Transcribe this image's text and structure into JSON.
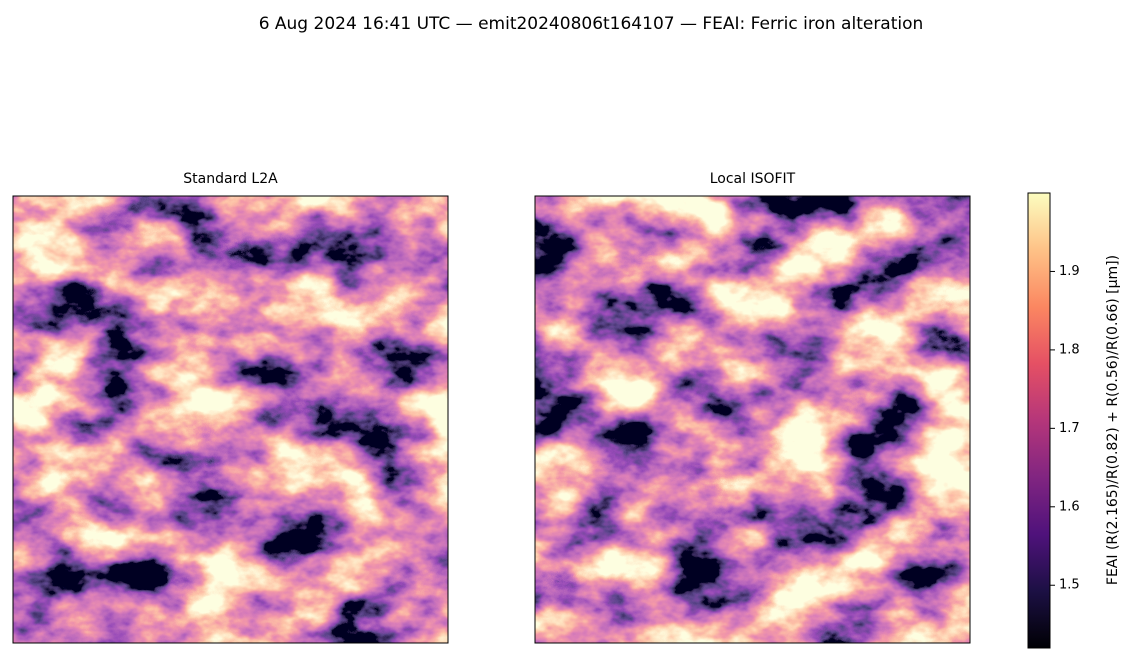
{
  "chart_data": {
    "type": "heatmap",
    "title": "6 Aug 2024 16:41 UTC — emit20240806t164107 — FEAI: Ferric iron alteration",
    "panels": [
      {
        "title": "Standard L2A"
      },
      {
        "title": "Local ISOFIT"
      }
    ],
    "colorbar": {
      "label": "FEAI  (R(2.165)/R(0.82) + R(0.56)/R(0.66)  [µm])",
      "lim": [
        1.42,
        2.0
      ],
      "ticks": [
        1.5,
        1.6,
        1.7,
        1.8,
        1.9
      ],
      "colormap": "magma"
    }
  }
}
